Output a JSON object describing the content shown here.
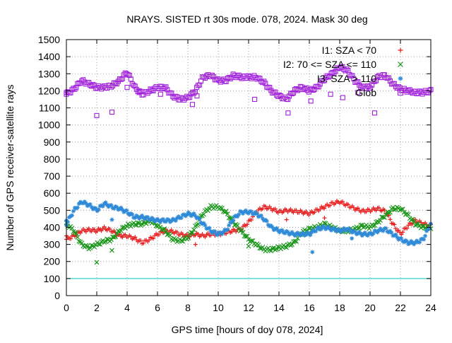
{
  "chart_data": {
    "type": "scatter",
    "title": "NRAYS. SISTED rt 30s mode. 078, 2024. Mask 30 deg",
    "xlabel": "GPS time [hours of doy 078, 2024]",
    "ylabel": "Number of GPS receiver-satellite rays",
    "xlim": [
      0,
      24
    ],
    "ylim": [
      0,
      1500
    ],
    "xticks": [
      0,
      2,
      4,
      6,
      8,
      10,
      12,
      14,
      16,
      18,
      20,
      22,
      24
    ],
    "yticks": [
      0,
      100,
      200,
      300,
      400,
      500,
      600,
      700,
      800,
      900,
      1000,
      1100,
      1200,
      1300,
      1400,
      1500
    ],
    "grid": true,
    "legend_position": "top-right",
    "reference_line": {
      "y": 100,
      "color": "#00cccc"
    },
    "series": [
      {
        "name": "I1: SZA < 70",
        "marker": "+",
        "color": "#e8191a",
        "x": [
          0,
          0.5,
          1,
          1.5,
          2,
          2.5,
          3,
          3.5,
          4,
          4.5,
          5,
          5.5,
          6,
          6.5,
          7,
          7.5,
          8,
          8.5,
          9,
          9.5,
          10,
          10.5,
          11,
          11.5,
          12,
          12.5,
          13,
          13.5,
          14,
          14.5,
          15,
          15.5,
          16,
          16.5,
          17,
          17.5,
          18,
          18.5,
          19,
          19.5,
          20,
          20.5,
          21,
          21.5,
          22,
          22.5,
          23,
          23.5,
          24
        ],
        "y": [
          330,
          350,
          380,
          385,
          380,
          395,
          380,
          350,
          350,
          335,
          310,
          330,
          360,
          380,
          375,
          360,
          350,
          360,
          350,
          360,
          360,
          370,
          380,
          390,
          430,
          490,
          520,
          510,
          490,
          500,
          495,
          490,
          480,
          500,
          520,
          540,
          550,
          530,
          510,
          495,
          500,
          510,
          495,
          420,
          360,
          410,
          440,
          420,
          410
        ]
      },
      {
        "name": "I2: 70 <= SZA <= 110",
        "marker": "x",
        "color": "#199619",
        "x": [
          0,
          0.5,
          1,
          1.5,
          2,
          2.5,
          3,
          3.5,
          4,
          4.5,
          5,
          5.5,
          6,
          6.5,
          7,
          7.5,
          8,
          8.5,
          9,
          9.5,
          10,
          10.5,
          11,
          11.5,
          12,
          12.5,
          13,
          13.5,
          14,
          14.5,
          15,
          15.5,
          16,
          16.5,
          17,
          17.5,
          18,
          18.5,
          19,
          19.5,
          20,
          20.5,
          21,
          21.5,
          22,
          22.5,
          23,
          23.5,
          24
        ],
        "y": [
          420,
          380,
          300,
          280,
          300,
          320,
          330,
          380,
          410,
          420,
          420,
          440,
          410,
          380,
          330,
          320,
          340,
          400,
          480,
          520,
          520,
          490,
          430,
          380,
          330,
          300,
          270,
          270,
          280,
          290,
          310,
          370,
          390,
          400,
          420,
          400,
          380,
          380,
          390,
          410,
          400,
          430,
          470,
          510,
          510,
          470,
          420,
          400,
          400
        ]
      },
      {
        "name": "I3: SZA > 110",
        "marker": "*",
        "color": "#2f8ad8",
        "x": [
          0,
          0.5,
          1,
          1.5,
          2,
          2.5,
          3,
          3.5,
          4,
          4.5,
          5,
          5.5,
          6,
          6.5,
          7,
          7.5,
          8,
          8.5,
          9,
          9.5,
          10,
          10.5,
          11,
          11.5,
          12,
          12.5,
          13,
          13.5,
          14,
          14.5,
          15,
          15.5,
          16,
          16.5,
          17,
          17.5,
          18,
          18.5,
          19,
          19.5,
          20,
          20.5,
          21,
          21.5,
          22,
          22.5,
          23,
          23.5,
          24
        ],
        "y": [
          420,
          500,
          550,
          530,
          500,
          540,
          520,
          510,
          490,
          460,
          460,
          450,
          440,
          440,
          440,
          460,
          480,
          470,
          420,
          380,
          360,
          380,
          450,
          490,
          490,
          480,
          450,
          400,
          380,
          370,
          360,
          360,
          360,
          390,
          400,
          390,
          380,
          390,
          370,
          360,
          360,
          380,
          390,
          360,
          330,
          310,
          310,
          330,
          420
        ]
      },
      {
        "name": "Glob",
        "marker": "square",
        "color": "#a01fdc",
        "x": [
          0,
          0.5,
          1,
          1.5,
          2,
          2.5,
          3,
          3.5,
          4,
          4.5,
          5,
          5.5,
          6,
          6.5,
          7,
          7.5,
          8,
          8.5,
          9,
          9.5,
          10,
          10.5,
          11,
          11.5,
          12,
          12.5,
          13,
          13.5,
          14,
          14.5,
          15,
          15.5,
          16,
          16.5,
          17,
          17.5,
          18,
          18.5,
          19,
          19.5,
          20,
          20.5,
          21,
          21.5,
          22,
          22.5,
          23,
          23.5,
          24
        ],
        "y": [
          1180,
          1210,
          1260,
          1240,
          1220,
          1220,
          1230,
          1260,
          1310,
          1220,
          1180,
          1200,
          1220,
          1220,
          1170,
          1150,
          1160,
          1200,
          1280,
          1290,
          1260,
          1260,
          1290,
          1280,
          1280,
          1280,
          1250,
          1200,
          1170,
          1150,
          1200,
          1220,
          1200,
          1220,
          1270,
          1300,
          1340,
          1320,
          1260,
          1220,
          1220,
          1280,
          1290,
          1240,
          1210,
          1200,
          1190,
          1190,
          1200
        ]
      }
    ],
    "outliers": [
      {
        "series": "Glob",
        "x": [
          0,
          2,
          3,
          4,
          4.8,
          6.2,
          8.3,
          8.6,
          12.4,
          14.6,
          16.1,
          17.4,
          18.2,
          19.2,
          20.3
        ],
        "y": [
          1190,
          1055,
          1075,
          1220,
          1190,
          1180,
          1120,
          1170,
          1150,
          1070,
          1140,
          1180,
          1160,
          1190,
          1070
        ]
      },
      {
        "series": "I1: SZA < 70",
        "x": [
          0,
          8.5,
          14.5,
          17
        ],
        "y": [
          350,
          300,
          445,
          455
        ]
      },
      {
        "series": "I2: 70 <= SZA <= 110",
        "x": [
          2,
          3,
          12
        ],
        "y": [
          195,
          265,
          290
        ]
      },
      {
        "series": "I3: SZA > 110",
        "x": [
          0,
          3,
          16.2,
          18.8
        ],
        "y": [
          440,
          445,
          255,
          335
        ]
      }
    ]
  }
}
